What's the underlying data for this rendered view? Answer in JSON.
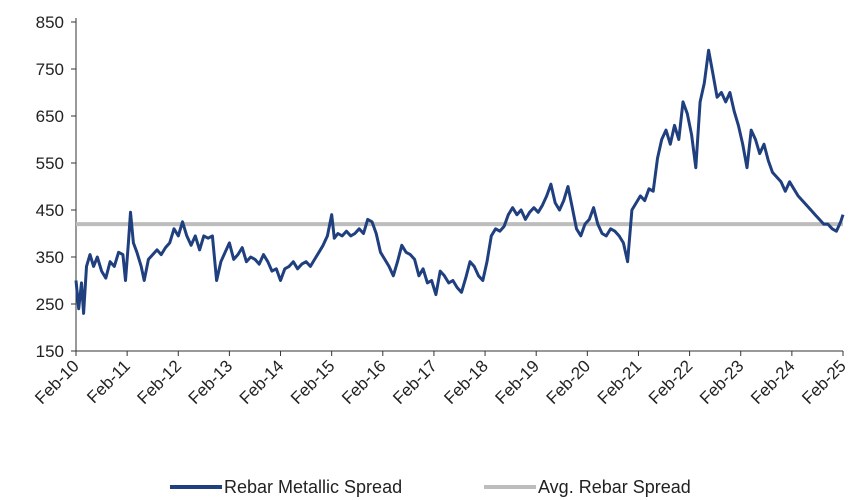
{
  "chart_data": {
    "type": "line",
    "title": "",
    "xlabel": "",
    "ylabel": "",
    "ylim": [
      150,
      850
    ],
    "yticks": [
      150,
      250,
      350,
      450,
      550,
      650,
      750,
      850
    ],
    "xlim": [
      "2010-02",
      "2025-02"
    ],
    "xtick_labels": [
      "Feb-10",
      "Feb-11",
      "Feb-12",
      "Feb-13",
      "Feb-14",
      "Feb-15",
      "Feb-16",
      "Feb-17",
      "Feb-18",
      "Feb-19",
      "Feb-20",
      "Feb-21",
      "Feb-22",
      "Feb-23",
      "Feb-24",
      "Feb-25"
    ],
    "grid": false,
    "legend_position": "bottom",
    "colors": {
      "spread": "#1f3f7f",
      "average": "#bdbdbd",
      "axis": "#333333"
    },
    "series": [
      {
        "name": "Rebar Metallic Spread",
        "points": [
          [
            "2010-02-01",
            300
          ],
          [
            "2010-02-20",
            240
          ],
          [
            "2010-03-10",
            295
          ],
          [
            "2010-03-25",
            230
          ],
          [
            "2010-04-15",
            330
          ],
          [
            "2010-05-10",
            355
          ],
          [
            "2010-06-05",
            330
          ],
          [
            "2010-07-01",
            350
          ],
          [
            "2010-08-01",
            320
          ],
          [
            "2010-09-01",
            305
          ],
          [
            "2010-10-01",
            340
          ],
          [
            "2010-11-01",
            330
          ],
          [
            "2010-12-01",
            360
          ],
          [
            "2011-01-01",
            355
          ],
          [
            "2011-01-20",
            300
          ],
          [
            "2011-02-10",
            380
          ],
          [
            "2011-02-25",
            445
          ],
          [
            "2011-03-15",
            380
          ],
          [
            "2011-04-10",
            360
          ],
          [
            "2011-05-10",
            330
          ],
          [
            "2011-06-01",
            300
          ],
          [
            "2011-07-01",
            345
          ],
          [
            "2011-08-01",
            355
          ],
          [
            "2011-09-01",
            365
          ],
          [
            "2011-10-01",
            355
          ],
          [
            "2011-11-01",
            370
          ],
          [
            "2011-12-01",
            380
          ],
          [
            "2012-01-01",
            410
          ],
          [
            "2012-02-01",
            395
          ],
          [
            "2012-03-01",
            425
          ],
          [
            "2012-04-01",
            395
          ],
          [
            "2012-05-01",
            375
          ],
          [
            "2012-06-01",
            395
          ],
          [
            "2012-07-01",
            365
          ],
          [
            "2012-08-01",
            395
          ],
          [
            "2012-09-01",
            390
          ],
          [
            "2012-10-01",
            395
          ],
          [
            "2012-11-01",
            300
          ],
          [
            "2012-12-01",
            340
          ],
          [
            "2013-01-01",
            360
          ],
          [
            "2013-02-01",
            380
          ],
          [
            "2013-03-01",
            345
          ],
          [
            "2013-04-01",
            355
          ],
          [
            "2013-05-01",
            370
          ],
          [
            "2013-06-01",
            340
          ],
          [
            "2013-07-01",
            350
          ],
          [
            "2013-08-01",
            345
          ],
          [
            "2013-09-01",
            335
          ],
          [
            "2013-10-01",
            355
          ],
          [
            "2013-11-01",
            340
          ],
          [
            "2013-12-01",
            320
          ],
          [
            "2014-01-01",
            325
          ],
          [
            "2014-02-01",
            300
          ],
          [
            "2014-03-01",
            325
          ],
          [
            "2014-04-01",
            330
          ],
          [
            "2014-05-01",
            340
          ],
          [
            "2014-06-01",
            325
          ],
          [
            "2014-07-01",
            335
          ],
          [
            "2014-08-01",
            340
          ],
          [
            "2014-09-01",
            330
          ],
          [
            "2014-10-01",
            345
          ],
          [
            "2014-11-01",
            360
          ],
          [
            "2014-12-01",
            375
          ],
          [
            "2015-01-01",
            395
          ],
          [
            "2015-02-01",
            440
          ],
          [
            "2015-02-20",
            390
          ],
          [
            "2015-03-15",
            400
          ],
          [
            "2015-04-15",
            395
          ],
          [
            "2015-05-15",
            405
          ],
          [
            "2015-06-15",
            395
          ],
          [
            "2015-07-15",
            400
          ],
          [
            "2015-08-15",
            410
          ],
          [
            "2015-09-15",
            400
          ],
          [
            "2015-10-15",
            430
          ],
          [
            "2015-11-15",
            425
          ],
          [
            "2015-12-15",
            400
          ],
          [
            "2016-01-15",
            360
          ],
          [
            "2016-02-15",
            345
          ],
          [
            "2016-03-15",
            330
          ],
          [
            "2016-04-15",
            310
          ],
          [
            "2016-05-15",
            340
          ],
          [
            "2016-06-15",
            375
          ],
          [
            "2016-07-15",
            360
          ],
          [
            "2016-08-15",
            355
          ],
          [
            "2016-09-15",
            345
          ],
          [
            "2016-10-15",
            310
          ],
          [
            "2016-11-15",
            325
          ],
          [
            "2016-12-15",
            295
          ],
          [
            "2017-01-15",
            300
          ],
          [
            "2017-02-15",
            270
          ],
          [
            "2017-03-15",
            320
          ],
          [
            "2017-04-15",
            310
          ],
          [
            "2017-05-15",
            295
          ],
          [
            "2017-06-15",
            300
          ],
          [
            "2017-07-15",
            285
          ],
          [
            "2017-08-15",
            275
          ],
          [
            "2017-09-15",
            305
          ],
          [
            "2017-10-15",
            340
          ],
          [
            "2017-11-15",
            330
          ],
          [
            "2017-12-15",
            310
          ],
          [
            "2018-01-15",
            300
          ],
          [
            "2018-02-15",
            340
          ],
          [
            "2018-03-15",
            395
          ],
          [
            "2018-04-15",
            410
          ],
          [
            "2018-05-15",
            405
          ],
          [
            "2018-06-15",
            415
          ],
          [
            "2018-07-15",
            440
          ],
          [
            "2018-08-15",
            455
          ],
          [
            "2018-09-15",
            440
          ],
          [
            "2018-10-15",
            450
          ],
          [
            "2018-11-15",
            430
          ],
          [
            "2018-12-15",
            445
          ],
          [
            "2019-01-15",
            455
          ],
          [
            "2019-02-15",
            445
          ],
          [
            "2019-03-15",
            460
          ],
          [
            "2019-04-15",
            480
          ],
          [
            "2019-05-15",
            505
          ],
          [
            "2019-06-15",
            465
          ],
          [
            "2019-07-15",
            450
          ],
          [
            "2019-08-15",
            470
          ],
          [
            "2019-09-15",
            500
          ],
          [
            "2019-10-15",
            455
          ],
          [
            "2019-11-15",
            410
          ],
          [
            "2019-12-15",
            395
          ],
          [
            "2020-01-15",
            420
          ],
          [
            "2020-02-15",
            430
          ],
          [
            "2020-03-15",
            455
          ],
          [
            "2020-04-15",
            420
          ],
          [
            "2020-05-15",
            400
          ],
          [
            "2020-06-15",
            395
          ],
          [
            "2020-07-15",
            410
          ],
          [
            "2020-08-15",
            405
          ],
          [
            "2020-09-15",
            395
          ],
          [
            "2020-10-15",
            380
          ],
          [
            "2020-11-15",
            340
          ],
          [
            "2020-12-15",
            450
          ],
          [
            "2021-01-15",
            465
          ],
          [
            "2021-02-15",
            480
          ],
          [
            "2021-03-15",
            470
          ],
          [
            "2021-04-15",
            495
          ],
          [
            "2021-05-15",
            490
          ],
          [
            "2021-06-15",
            560
          ],
          [
            "2021-07-15",
            600
          ],
          [
            "2021-08-15",
            620
          ],
          [
            "2021-09-15",
            590
          ],
          [
            "2021-10-15",
            630
          ],
          [
            "2021-11-15",
            600
          ],
          [
            "2021-12-15",
            680
          ],
          [
            "2022-01-15",
            655
          ],
          [
            "2022-02-15",
            610
          ],
          [
            "2022-03-15",
            540
          ],
          [
            "2022-04-15",
            680
          ],
          [
            "2022-05-15",
            720
          ],
          [
            "2022-06-15",
            790
          ],
          [
            "2022-07-15",
            740
          ],
          [
            "2022-08-15",
            690
          ],
          [
            "2022-09-15",
            700
          ],
          [
            "2022-10-15",
            680
          ],
          [
            "2022-11-15",
            700
          ],
          [
            "2022-12-15",
            660
          ],
          [
            "2023-01-15",
            630
          ],
          [
            "2023-02-15",
            590
          ],
          [
            "2023-03-15",
            540
          ],
          [
            "2023-04-15",
            620
          ],
          [
            "2023-05-15",
            600
          ],
          [
            "2023-06-15",
            570
          ],
          [
            "2023-07-15",
            590
          ],
          [
            "2023-08-15",
            555
          ],
          [
            "2023-09-15",
            530
          ],
          [
            "2023-10-15",
            520
          ],
          [
            "2023-11-15",
            510
          ],
          [
            "2023-12-15",
            490
          ],
          [
            "2024-01-15",
            510
          ],
          [
            "2024-02-15",
            495
          ],
          [
            "2024-03-15",
            480
          ],
          [
            "2024-04-15",
            470
          ],
          [
            "2024-05-15",
            460
          ],
          [
            "2024-06-15",
            450
          ],
          [
            "2024-07-15",
            440
          ],
          [
            "2024-08-15",
            430
          ],
          [
            "2024-09-15",
            420
          ],
          [
            "2024-10-15",
            420
          ],
          [
            "2024-11-15",
            410
          ],
          [
            "2024-12-15",
            405
          ],
          [
            "2025-01-15",
            425
          ],
          [
            "2025-02-01",
            440
          ]
        ]
      },
      {
        "name": "Avg. Rebar Spread",
        "value": 420
      }
    ]
  }
}
